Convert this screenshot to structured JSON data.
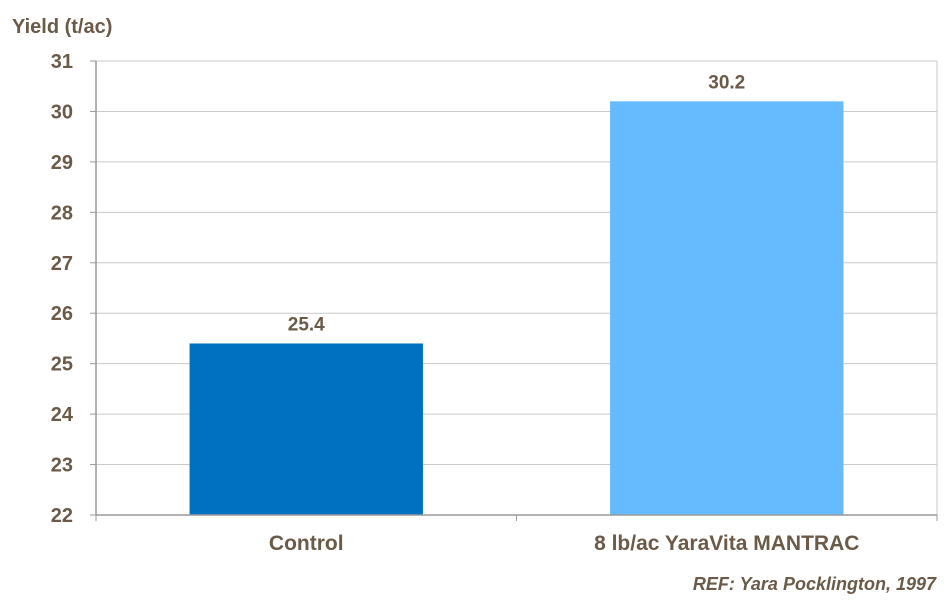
{
  "chart_data": {
    "type": "bar",
    "categories": [
      "Control",
      "8 lb/ac YaraVita MANTRAC"
    ],
    "values": [
      25.4,
      30.2
    ],
    "data_labels": [
      "25.4",
      "30.2"
    ],
    "bar_colors": [
      "#0070c0",
      "#66bbff"
    ],
    "ylabel": "Yield (t/ac)",
    "ylim": [
      22,
      31
    ],
    "yticks": [
      22,
      23,
      24,
      25,
      26,
      27,
      28,
      29,
      30,
      31
    ],
    "grid": true,
    "gridline_color": "#c9c9c9",
    "axis_color": "#999999",
    "text_color": "#6b5a48",
    "legend": "none"
  },
  "footnote": "REF: Yara Pocklington, 1997"
}
